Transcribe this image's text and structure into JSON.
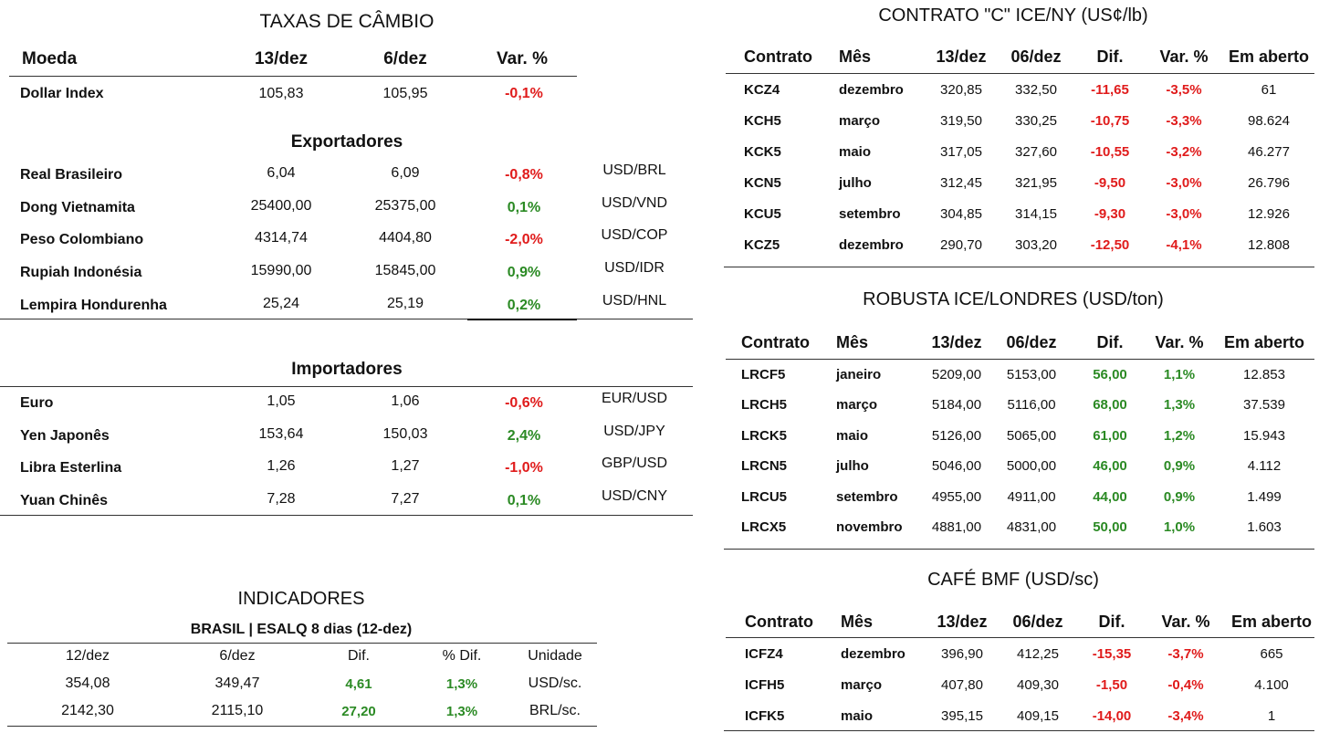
{
  "cambio": {
    "title": "TAXAS DE CÂMBIO",
    "headers": {
      "moeda": "Moeda",
      "d1": "13/dez",
      "d2": "6/dez",
      "var": "Var. %"
    },
    "dollar_index": {
      "name": "Dollar Index",
      "d1": "105,83",
      "d2": "105,95",
      "var": "-0,1%"
    },
    "exportadores_title": "Exportadores",
    "exportadores": [
      {
        "name": "Real Brasileiro",
        "d1": "6,04",
        "d2": "6,09",
        "var": "-0,8%",
        "pair": "USD/BRL"
      },
      {
        "name": "Dong Vietnamita",
        "d1": "25400,00",
        "d2": "25375,00",
        "var": "0,1%",
        "pair": "USD/VND"
      },
      {
        "name": "Peso Colombiano",
        "d1": "4314,74",
        "d2": "4404,80",
        "var": "-2,0%",
        "pair": "USD/COP"
      },
      {
        "name": "Rupiah Indonésia",
        "d1": "15990,00",
        "d2": "15845,00",
        "var": "0,9%",
        "pair": "USD/IDR"
      },
      {
        "name": "Lempira Hondurenha",
        "d1": "25,24",
        "d2": "25,19",
        "var": "0,2%",
        "pair": "USD/HNL"
      }
    ],
    "importadores_title": "Importadores",
    "importadores": [
      {
        "name": "Euro",
        "d1": "1,05",
        "d2": "1,06",
        "var": "-0,6%",
        "pair": "EUR/USD"
      },
      {
        "name": "Yen Japonês",
        "d1": "153,64",
        "d2": "150,03",
        "var": "2,4%",
        "pair": "USD/JPY"
      },
      {
        "name": "Libra Esterlina",
        "d1": "1,26",
        "d2": "1,27",
        "var": "-1,0%",
        "pair": "GBP/USD"
      },
      {
        "name": "Yuan Chinês",
        "d1": "7,28",
        "d2": "7,27",
        "var": "0,1%",
        "pair": "USD/CNY"
      }
    ]
  },
  "indicadores": {
    "title": "INDICADORES",
    "subtitle": "BRASIL | ESALQ 8 dias (12-dez)",
    "headers": {
      "d1": "12/dez",
      "d2": "6/dez",
      "dif": "Dif.",
      "pdif": "% Dif.",
      "unidade": "Unidade"
    },
    "rows": [
      {
        "d1": "354,08",
        "d2": "349,47",
        "dif": "4,61",
        "pdif": "1,3%",
        "unidade": "USD/sc."
      },
      {
        "d1": "2142,30",
        "d2": "2115,10",
        "dif": "27,20",
        "pdif": "1,3%",
        "unidade": "BRL/sc."
      }
    ]
  },
  "tables": [
    {
      "title": "CONTRATO \"C\" ICE/NY (US¢/lb)",
      "headers": {
        "contrato": "Contrato",
        "mes": "Mês",
        "d1": "13/dez",
        "d2": "06/dez",
        "dif": "Dif.",
        "var": "Var. %",
        "aberto": "Em aberto"
      },
      "rows": [
        {
          "contrato": "KCZ4",
          "mes": "dezembro",
          "d1": "320,85",
          "d2": "332,50",
          "dif": "-11,65",
          "var": "-3,5%",
          "aberto": "61"
        },
        {
          "contrato": "KCH5",
          "mes": "março",
          "d1": "319,50",
          "d2": "330,25",
          "dif": "-10,75",
          "var": "-3,3%",
          "aberto": "98.624"
        },
        {
          "contrato": "KCK5",
          "mes": "maio",
          "d1": "317,05",
          "d2": "327,60",
          "dif": "-10,55",
          "var": "-3,2%",
          "aberto": "46.277"
        },
        {
          "contrato": "KCN5",
          "mes": "julho",
          "d1": "312,45",
          "d2": "321,95",
          "dif": "-9,50",
          "var": "-3,0%",
          "aberto": "26.796"
        },
        {
          "contrato": "KCU5",
          "mes": "setembro",
          "d1": "304,85",
          "d2": "314,15",
          "dif": "-9,30",
          "var": "-3,0%",
          "aberto": "12.926"
        },
        {
          "contrato": "KCZ5",
          "mes": "dezembro",
          "d1": "290,70",
          "d2": "303,20",
          "dif": "-12,50",
          "var": "-4,1%",
          "aberto": "12.808"
        }
      ]
    },
    {
      "title": "ROBUSTA ICE/LONDRES (USD/ton)",
      "headers": {
        "contrato": "Contrato",
        "mes": "Mês",
        "d1": "13/dez",
        "d2": "06/dez",
        "dif": "Dif.",
        "var": "Var. %",
        "aberto": "Em aberto"
      },
      "rows": [
        {
          "contrato": "LRCF5",
          "mes": "janeiro",
          "d1": "5209,00",
          "d2": "5153,00",
          "dif": "56,00",
          "var": "1,1%",
          "aberto": "12.853"
        },
        {
          "contrato": "LRCH5",
          "mes": "março",
          "d1": "5184,00",
          "d2": "5116,00",
          "dif": "68,00",
          "var": "1,3%",
          "aberto": "37.539"
        },
        {
          "contrato": "LRCK5",
          "mes": "maio",
          "d1": "5126,00",
          "d2": "5065,00",
          "dif": "61,00",
          "var": "1,2%",
          "aberto": "15.943"
        },
        {
          "contrato": "LRCN5",
          "mes": "julho",
          "d1": "5046,00",
          "d2": "5000,00",
          "dif": "46,00",
          "var": "0,9%",
          "aberto": "4.112"
        },
        {
          "contrato": "LRCU5",
          "mes": "setembro",
          "d1": "4955,00",
          "d2": "4911,00",
          "dif": "44,00",
          "var": "0,9%",
          "aberto": "1.499"
        },
        {
          "contrato": "LRCX5",
          "mes": "novembro",
          "d1": "4881,00",
          "d2": "4831,00",
          "dif": "50,00",
          "var": "1,0%",
          "aberto": "1.603"
        }
      ]
    },
    {
      "title": "CAFÉ BMF (USD/sc)",
      "headers": {
        "contrato": "Contrato",
        "mes": "Mês",
        "d1": "13/dez",
        "d2": "06/dez",
        "dif": "Dif.",
        "var": "Var. %",
        "aberto": "Em aberto"
      },
      "rows": [
        {
          "contrato": "ICFZ4",
          "mes": "dezembro",
          "d1": "396,90",
          "d2": "412,25",
          "dif": "-15,35",
          "var": "-3,7%",
          "aberto": "665"
        },
        {
          "contrato": "ICFH5",
          "mes": "março",
          "d1": "407,80",
          "d2": "409,30",
          "dif": "-1,50",
          "var": "-0,4%",
          "aberto": "4.100"
        },
        {
          "contrato": "ICFK5",
          "mes": "maio",
          "d1": "395,15",
          "d2": "409,15",
          "dif": "-14,00",
          "var": "-3,4%",
          "aberto": "1"
        }
      ]
    }
  ],
  "colors": {
    "positive": "#2b8a24",
    "negative": "#e01b1b"
  }
}
